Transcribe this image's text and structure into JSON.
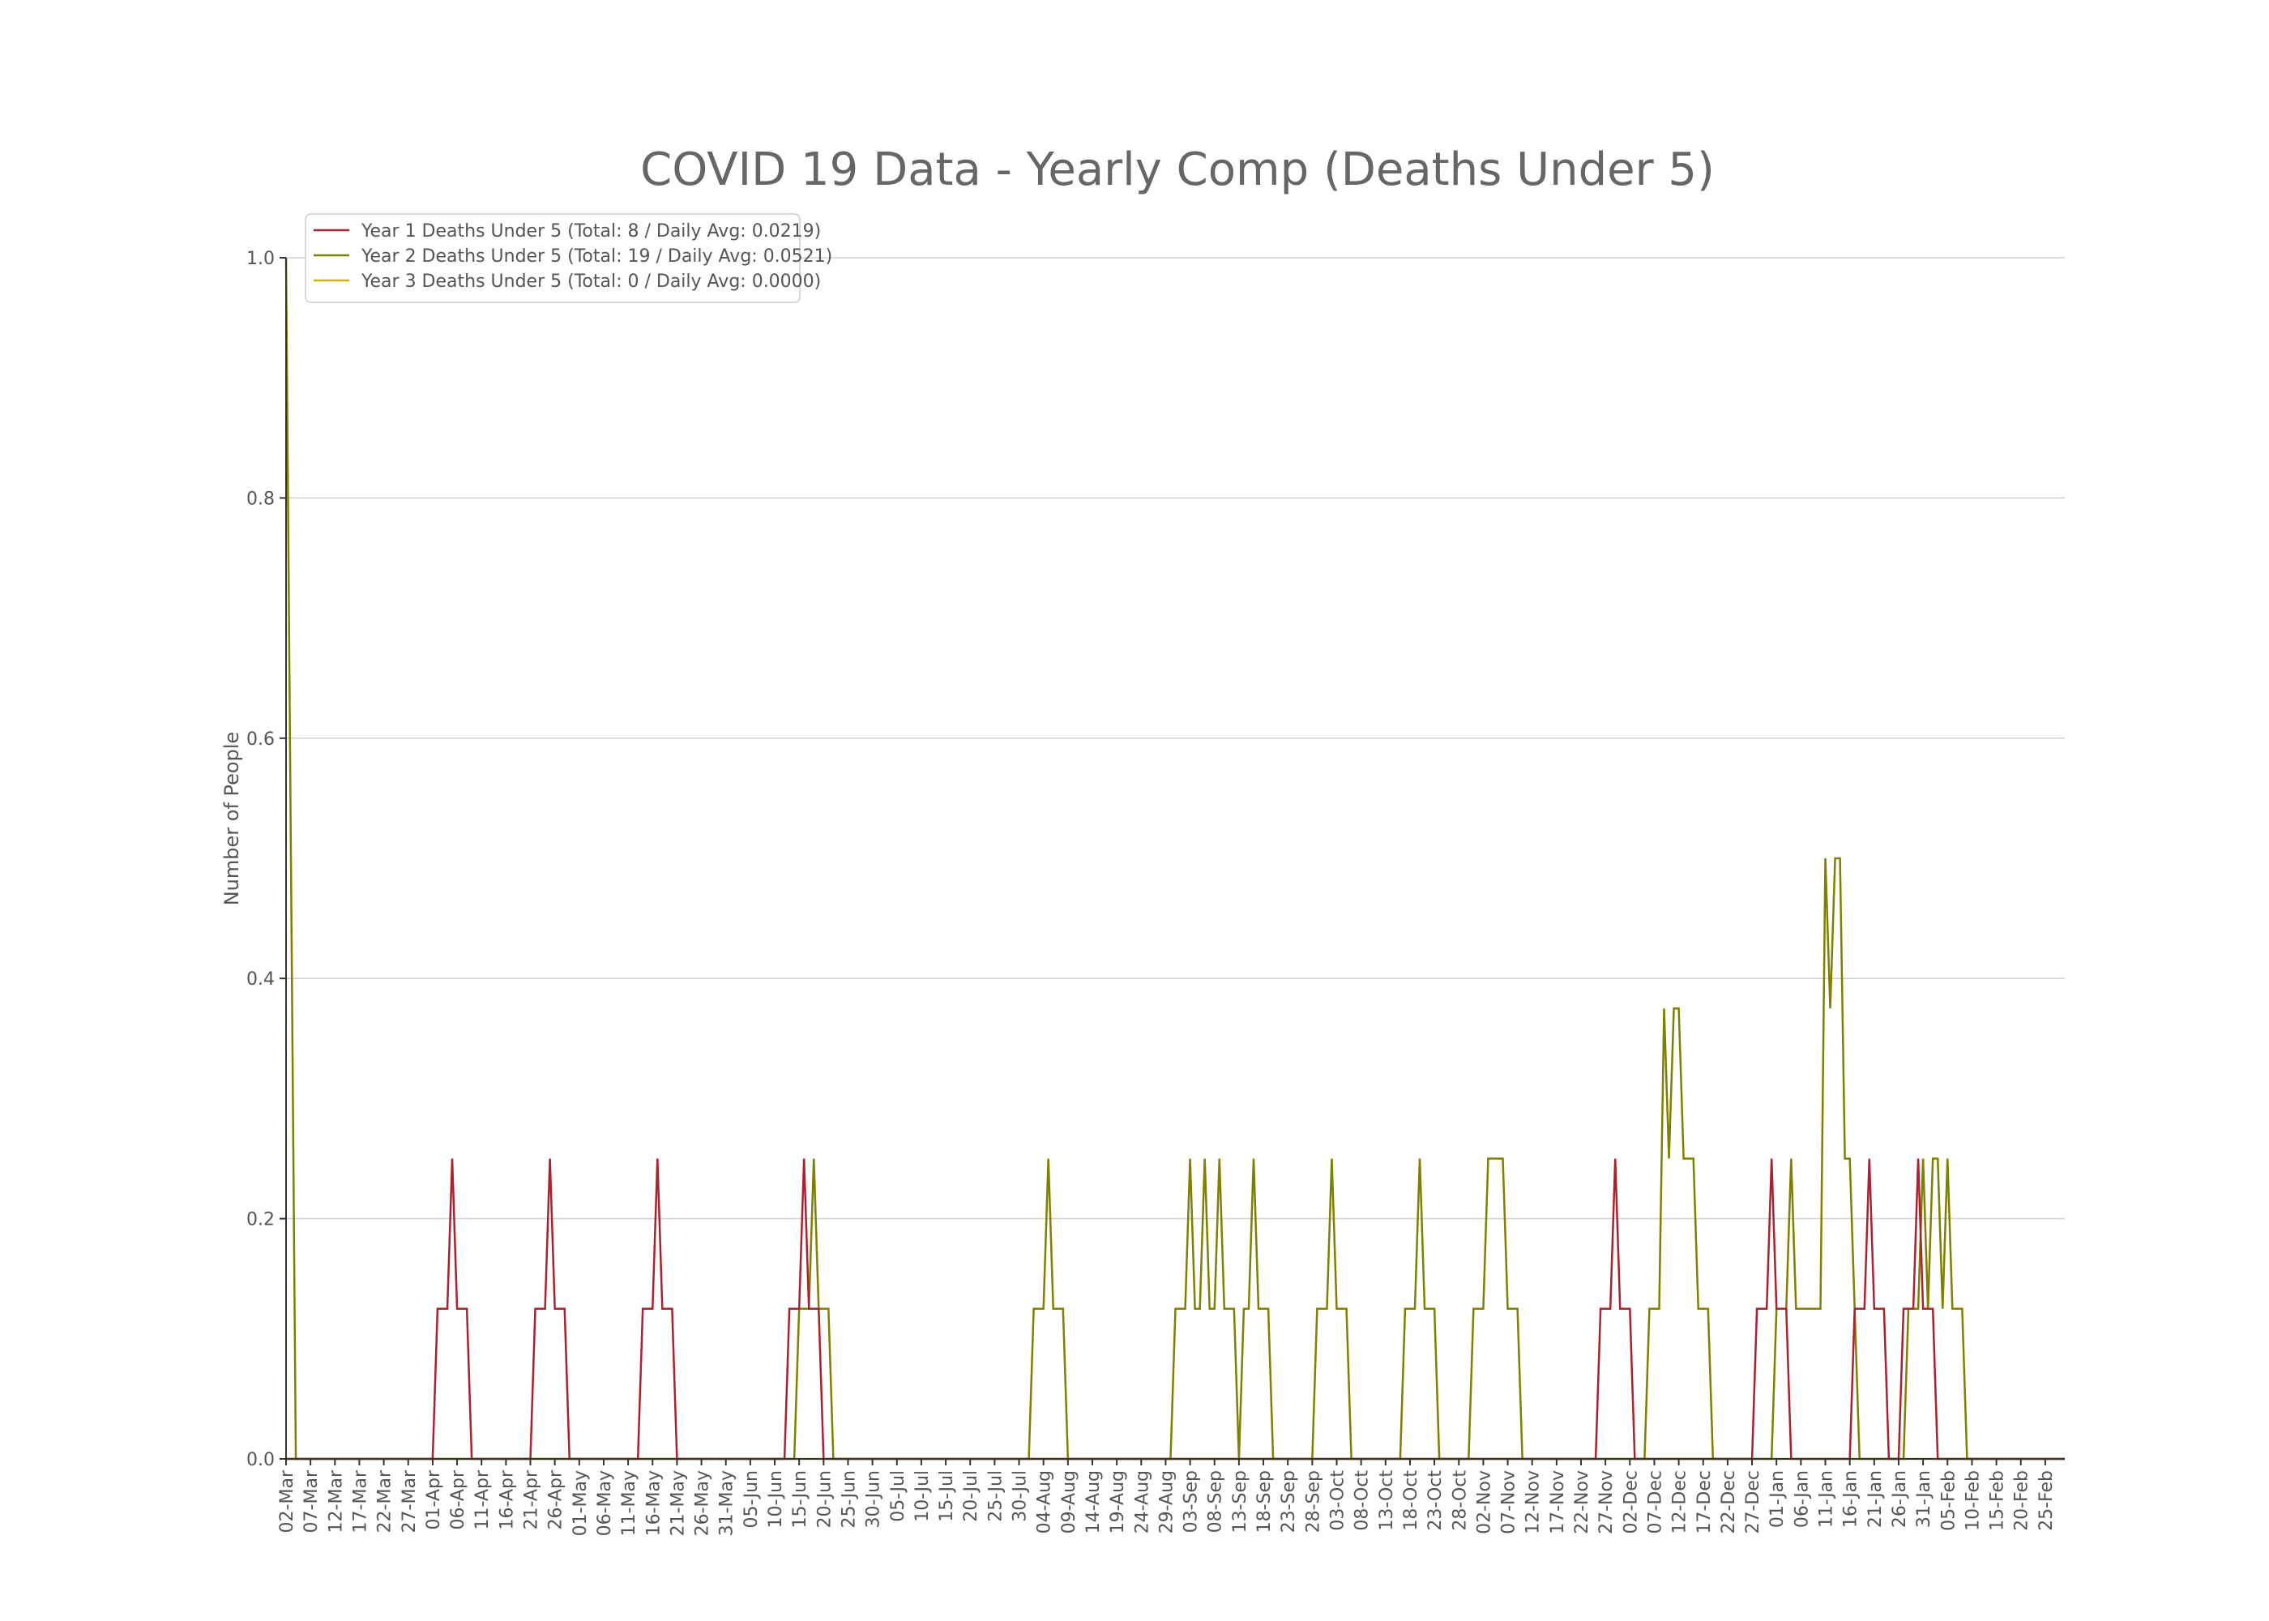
{
  "chart_data": {
    "type": "line",
    "title": "COVID 19 Data - Yearly Comp (Deaths Under 5)",
    "xlabel": "",
    "ylabel": "Number of People",
    "ylim": [
      0,
      1.0
    ],
    "yticks": [
      "0.0",
      "0.2",
      "0.4",
      "0.6",
      "0.8",
      "1.0"
    ],
    "grid": "horizontal",
    "legend_position": "top-left",
    "colors": {
      "year1": "#a8232f",
      "year2": "#7f7f00",
      "year3": "#d4b000",
      "text": "#555555",
      "title": "#666666",
      "grid": "#d0d0d0",
      "axis": "#333333"
    },
    "categories": [
      "02-Mar",
      "07-Mar",
      "12-Mar",
      "17-Mar",
      "22-Mar",
      "27-Mar",
      "01-Apr",
      "06-Apr",
      "11-Apr",
      "16-Apr",
      "21-Apr",
      "26-Apr",
      "01-May",
      "06-May",
      "11-May",
      "16-May",
      "21-May",
      "26-May",
      "31-May",
      "05-Jun",
      "10-Jun",
      "15-Jun",
      "20-Jun",
      "25-Jun",
      "30-Jun",
      "05-Jul",
      "10-Jul",
      "15-Jul",
      "20-Jul",
      "25-Jul",
      "30-Jul",
      "04-Aug",
      "09-Aug",
      "14-Aug",
      "19-Aug",
      "24-Aug",
      "29-Aug",
      "03-Sep",
      "08-Sep",
      "13-Sep",
      "18-Sep",
      "23-Sep",
      "28-Sep",
      "03-Oct",
      "08-Oct",
      "13-Oct",
      "18-Oct",
      "23-Oct",
      "28-Oct",
      "02-Nov",
      "07-Nov",
      "12-Nov",
      "17-Nov",
      "22-Nov",
      "27-Nov",
      "02-Dec",
      "07-Dec",
      "12-Dec",
      "17-Dec",
      "22-Dec",
      "27-Dec",
      "01-Jan",
      "06-Jan",
      "11-Jan",
      "16-Jan",
      "21-Jan",
      "26-Jan",
      "31-Jan",
      "05-Feb",
      "10-Feb",
      "15-Feb",
      "20-Feb",
      "25-Feb"
    ],
    "series": [
      {
        "name": "Year 1 Deaths Under 5 (Total: 8 / Daily Avg: 0.0219)",
        "color": "#a8232f",
        "points": [
          [
            0,
            0
          ],
          [
            30,
            0
          ],
          [
            31,
            0.125
          ],
          [
            32,
            0.125
          ],
          [
            33,
            0.125
          ],
          [
            34,
            0.25
          ],
          [
            35,
            0.125
          ],
          [
            36,
            0.125
          ],
          [
            37,
            0.125
          ],
          [
            38,
            0
          ],
          [
            50,
            0
          ],
          [
            51,
            0.125
          ],
          [
            52,
            0.125
          ],
          [
            53,
            0.125
          ],
          [
            54,
            0.25
          ],
          [
            55,
            0.125
          ],
          [
            56,
            0.125
          ],
          [
            57,
            0.125
          ],
          [
            58,
            0
          ],
          [
            72,
            0
          ],
          [
            73,
            0.125
          ],
          [
            74,
            0.125
          ],
          [
            75,
            0.125
          ],
          [
            76,
            0.25
          ],
          [
            77,
            0.125
          ],
          [
            78,
            0.125
          ],
          [
            79,
            0.125
          ],
          [
            80,
            0
          ],
          [
            102,
            0
          ],
          [
            103,
            0.125
          ],
          [
            104,
            0.125
          ],
          [
            105,
            0.125
          ],
          [
            106,
            0.25
          ],
          [
            107,
            0.125
          ],
          [
            108,
            0.125
          ],
          [
            109,
            0.125
          ],
          [
            110,
            0
          ],
          [
            268,
            0
          ],
          [
            269,
            0.125
          ],
          [
            270,
            0.125
          ],
          [
            271,
            0.125
          ],
          [
            272,
            0.25
          ],
          [
            273,
            0.125
          ],
          [
            274,
            0.125
          ],
          [
            275,
            0.125
          ],
          [
            276,
            0
          ],
          [
            300,
            0
          ],
          [
            301,
            0.125
          ],
          [
            302,
            0.125
          ],
          [
            303,
            0.125
          ],
          [
            304,
            0.25
          ],
          [
            305,
            0.125
          ],
          [
            306,
            0.125
          ],
          [
            307,
            0.125
          ],
          [
            308,
            0
          ],
          [
            320,
            0
          ],
          [
            321,
            0.125
          ],
          [
            322,
            0.125
          ],
          [
            323,
            0.125
          ],
          [
            324,
            0.25
          ],
          [
            325,
            0.125
          ],
          [
            326,
            0.125
          ],
          [
            327,
            0.125
          ],
          [
            328,
            0
          ],
          [
            330,
            0
          ],
          [
            331,
            0.125
          ],
          [
            332,
            0.125
          ],
          [
            333,
            0.125
          ],
          [
            334,
            0.25
          ],
          [
            335,
            0.125
          ],
          [
            336,
            0.125
          ],
          [
            337,
            0.125
          ],
          [
            338,
            0
          ],
          [
            364,
            0
          ]
        ]
      },
      {
        "name": "Year 2 Deaths Under 5 (Total: 19 / Daily Avg: 0.0521)",
        "color": "#7f7f00",
        "points": [
          [
            0,
            1.0
          ],
          [
            2,
            0
          ],
          [
            104,
            0
          ],
          [
            105,
            0.125
          ],
          [
            106,
            0.125
          ],
          [
            107,
            0.125
          ],
          [
            108,
            0.25
          ],
          [
            109,
            0.125
          ],
          [
            110,
            0.125
          ],
          [
            111,
            0.125
          ],
          [
            112,
            0
          ],
          [
            152,
            0
          ],
          [
            153,
            0.125
          ],
          [
            154,
            0.125
          ],
          [
            155,
            0.125
          ],
          [
            156,
            0.25
          ],
          [
            157,
            0.125
          ],
          [
            158,
            0.125
          ],
          [
            159,
            0.125
          ],
          [
            160,
            0
          ],
          [
            181,
            0
          ],
          [
            182,
            0.125
          ],
          [
            183,
            0.125
          ],
          [
            184,
            0.125
          ],
          [
            185,
            0.25
          ],
          [
            186,
            0.125
          ],
          [
            187,
            0.125
          ],
          [
            188,
            0.25
          ],
          [
            189,
            0.125
          ],
          [
            190,
            0.125
          ],
          [
            191,
            0.25
          ],
          [
            192,
            0.125
          ],
          [
            193,
            0.125
          ],
          [
            194,
            0.125
          ],
          [
            195,
            0
          ],
          [
            196,
            0.125
          ],
          [
            197,
            0.125
          ],
          [
            198,
            0.25
          ],
          [
            199,
            0.125
          ],
          [
            200,
            0.125
          ],
          [
            201,
            0.125
          ],
          [
            202,
            0
          ],
          [
            210,
            0
          ],
          [
            211,
            0.125
          ],
          [
            212,
            0.125
          ],
          [
            213,
            0.125
          ],
          [
            214,
            0.25
          ],
          [
            215,
            0.125
          ],
          [
            216,
            0.125
          ],
          [
            217,
            0.125
          ],
          [
            218,
            0
          ],
          [
            228,
            0
          ],
          [
            229,
            0.125
          ],
          [
            230,
            0.125
          ],
          [
            231,
            0.125
          ],
          [
            232,
            0.25
          ],
          [
            233,
            0.125
          ],
          [
            234,
            0.125
          ],
          [
            235,
            0.125
          ],
          [
            236,
            0
          ],
          [
            242,
            0
          ],
          [
            243,
            0.125
          ],
          [
            244,
            0.125
          ],
          [
            245,
            0.125
          ],
          [
            246,
            0.25
          ],
          [
            247,
            0.25
          ],
          [
            248,
            0.25
          ],
          [
            249,
            0.25
          ],
          [
            250,
            0.125
          ],
          [
            251,
            0.125
          ],
          [
            252,
            0.125
          ],
          [
            253,
            0
          ],
          [
            278,
            0
          ],
          [
            279,
            0.125
          ],
          [
            280,
            0.125
          ],
          [
            281,
            0.125
          ],
          [
            282,
            0.375
          ],
          [
            283,
            0.25
          ],
          [
            284,
            0.375
          ],
          [
            285,
            0.375
          ],
          [
            286,
            0.25
          ],
          [
            287,
            0.25
          ],
          [
            288,
            0.25
          ],
          [
            289,
            0.125
          ],
          [
            290,
            0.125
          ],
          [
            291,
            0.125
          ],
          [
            292,
            0
          ],
          [
            304,
            0
          ],
          [
            305,
            0.125
          ],
          [
            306,
            0.125
          ],
          [
            307,
            0.125
          ],
          [
            308,
            0.25
          ],
          [
            309,
            0.125
          ],
          [
            310,
            0.125
          ],
          [
            311,
            0.125
          ],
          [
            312,
            0.125
          ],
          [
            313,
            0.125
          ],
          [
            314,
            0.125
          ],
          [
            315,
            0.5
          ],
          [
            316,
            0.375
          ],
          [
            317,
            0.5
          ],
          [
            318,
            0.5
          ],
          [
            319,
            0.25
          ],
          [
            320,
            0.25
          ],
          [
            321,
            0.125
          ],
          [
            322,
            0
          ],
          [
            331,
            0
          ],
          [
            332,
            0.125
          ],
          [
            333,
            0.125
          ],
          [
            334,
            0.125
          ],
          [
            335,
            0.25
          ],
          [
            336,
            0.125
          ],
          [
            337,
            0.25
          ],
          [
            338,
            0.25
          ],
          [
            339,
            0.125
          ],
          [
            340,
            0.25
          ],
          [
            341,
            0.125
          ],
          [
            342,
            0.125
          ],
          [
            343,
            0.125
          ],
          [
            344,
            0
          ],
          [
            364,
            0
          ]
        ]
      },
      {
        "name": "Year 3 Deaths Under 5 (Total: 0 / Daily Avg: 0.0000)",
        "color": "#d4b000",
        "points": [
          [
            0,
            0
          ],
          [
            364,
            0
          ]
        ]
      }
    ]
  }
}
